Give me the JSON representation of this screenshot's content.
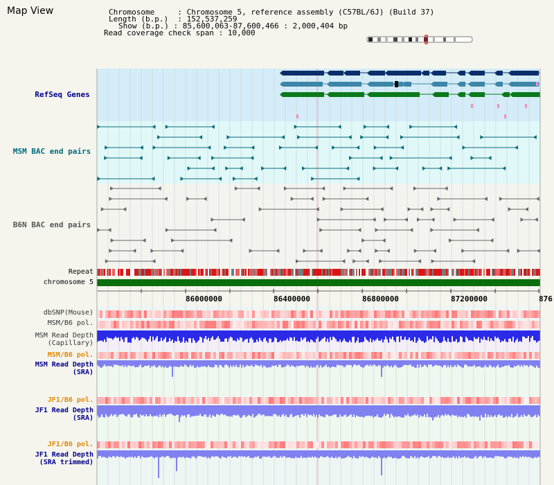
{
  "window": {
    "title": "Map View"
  },
  "info": {
    "chromosome_label": "Chromosome",
    "chromosome_value": "Chromosome 5, reference assembly (C57BL/6J) (Build 37)",
    "length_label": "Length (b.p.)",
    "length_value": "152,537,259",
    "show_label": "Show (b.p.)",
    "show_value": "85,600,063-87,600,466 : 2,000,404 bp",
    "coverage_label": "Read coverage check span",
    "coverage_value": "10,000"
  },
  "tracks": {
    "refseq": {
      "label": "RefSeq Genes",
      "color": "#00008b"
    },
    "msm_bac": {
      "label": "MSM BAC end pairs",
      "color": "#006b7b"
    },
    "b6n_bac": {
      "label": "B6N BAC end pairs",
      "color": "#555555"
    },
    "repeat": {
      "label": "Repeat"
    },
    "chromosome": {
      "label": "chromosome 5"
    },
    "dbsnp": {
      "label": "dbSNP(Mouse)"
    },
    "msm_b6_pol_1": {
      "label": "MSM/B6 pol."
    },
    "msm_depth_cap": {
      "label": "MSM Read Depth\n(Capillary)"
    },
    "msm_b6_pol_2": {
      "label": "MSM/B6 pol.",
      "color": "#e08800"
    },
    "msm_depth_sra": {
      "label": "MSM Read Depth\n(SRA)",
      "color": "#00008b"
    },
    "jf1_b6_pol_1": {
      "label": "JF1/B6 pol.",
      "color": "#e08800"
    },
    "jf1_depth_sra": {
      "label": "JF1 Read Depth\n(SRA)",
      "color": "#00008b"
    },
    "jf1_b6_pol_2": {
      "label": "JF1/B6 pol.",
      "color": "#e08800"
    },
    "jf1_depth_trim": {
      "label": "JF1 Read Depth\n(SRA trimmed)",
      "color": "#00008b"
    }
  },
  "axis": {
    "ticks": [
      "86000000",
      "86400000",
      "86800000",
      "87200000",
      "876"
    ]
  },
  "colors": {
    "refseq_bg": "#d4ecf7",
    "msm_bac_bg": "#e0f8f8",
    "depth_bg": "#eef8ee",
    "gene_navy": "#0b2e6b",
    "gene_teal": "#3e86a8",
    "gene_green": "#0a7a1a",
    "chromosome_bar": "#0a6e0a",
    "depth_blue": "#2a2ae8",
    "depth_light": "#8080f0"
  }
}
